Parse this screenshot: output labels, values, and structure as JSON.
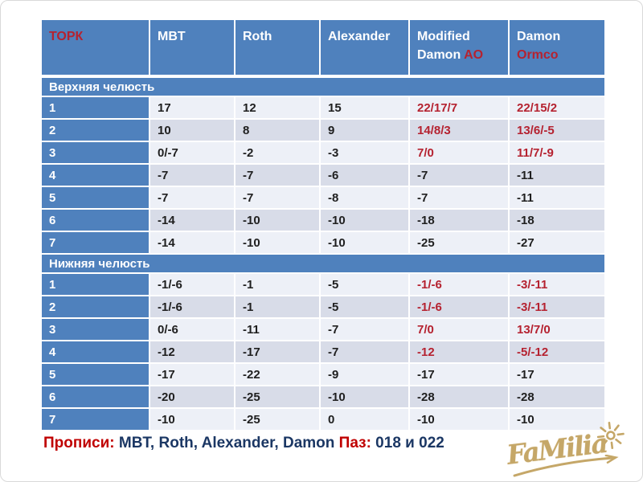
{
  "table": {
    "header": [
      {
        "lines": [
          [
            {
              "t": "ТОРК",
              "red": true
            }
          ]
        ]
      },
      {
        "lines": [
          [
            {
              "t": "MBT"
            }
          ]
        ]
      },
      {
        "lines": [
          [
            {
              "t": "Roth"
            }
          ]
        ]
      },
      {
        "lines": [
          [
            {
              "t": "Alexander"
            }
          ]
        ]
      },
      {
        "lines": [
          [
            {
              "t": "Modified"
            }
          ],
          [
            {
              "t": "Damon "
            },
            {
              "t": "AO",
              "red": true
            }
          ]
        ]
      },
      {
        "lines": [
          [
            {
              "t": "Damon"
            }
          ],
          [
            {
              "t": "Ormco",
              "red": true
            }
          ]
        ]
      }
    ],
    "sections": [
      {
        "title": "Верхняя челюсть",
        "rows": [
          {
            "label": "1",
            "values": [
              "17",
              "12",
              "15",
              "22/17/7",
              "22/15/2"
            ],
            "red": [
              3,
              4
            ]
          },
          {
            "label": "2",
            "values": [
              "10",
              "8",
              "9",
              "14/8/3",
              "13/6/-5"
            ],
            "red": [
              3,
              4
            ]
          },
          {
            "label": "3",
            "values": [
              "0/-7",
              "-2",
              "-3",
              "7/0",
              "11/7/-9"
            ],
            "red": [
              3,
              4
            ]
          },
          {
            "label": "4",
            "values": [
              "-7",
              "-7",
              "-6",
              "-7",
              "-11"
            ],
            "red": []
          },
          {
            "label": "5",
            "values": [
              "-7",
              "-7",
              "-8",
              "-7",
              "-11"
            ],
            "red": []
          },
          {
            "label": "6",
            "values": [
              "-14",
              "-10",
              "-10",
              "-18",
              "-18"
            ],
            "red": []
          },
          {
            "label": "7",
            "values": [
              "-14",
              "-10",
              "-10",
              "-25",
              "-27"
            ],
            "red": []
          }
        ]
      },
      {
        "title": "Нижняя челюсть",
        "rows": [
          {
            "label": "1",
            "values": [
              "-1/-6",
              "-1",
              "-5",
              "-1/-6",
              "-3/-11"
            ],
            "red": [
              3,
              4
            ]
          },
          {
            "label": "2",
            "values": [
              "-1/-6",
              "-1",
              "-5",
              "-1/-6",
              "-3/-11"
            ],
            "red": [
              3,
              4
            ]
          },
          {
            "label": "3",
            "values": [
              "0/-6",
              "-11",
              "-7",
              "7/0",
              "13/7/0"
            ],
            "red": [
              3,
              4
            ]
          },
          {
            "label": "4",
            "values": [
              "-12",
              "-17",
              "-7",
              "-12",
              "-5/-12"
            ],
            "red": [
              3,
              4
            ]
          },
          {
            "label": "5",
            "values": [
              "-17",
              "-22",
              "-9",
              "-17",
              "-17"
            ],
            "red": []
          },
          {
            "label": "6",
            "values": [
              "-20",
              "-25",
              "-10",
              "-28",
              "-28"
            ],
            "red": []
          },
          {
            "label": "7",
            "values": [
              "-10",
              "-25",
              "0",
              "-10",
              "-10"
            ],
            "red": []
          }
        ]
      }
    ]
  },
  "footer": {
    "label1": "Прописи:",
    "value1": " MBT, Roth, Alexander, Damon",
    "label2": "  Паз:",
    "value2": " 018 и 022"
  },
  "logo": {
    "text": "FaMilia"
  },
  "colors": {
    "header_blue": "#4f81bd",
    "row_light": "#edf0f7",
    "row_dark": "#d8dce8",
    "accent_red": "#b52230",
    "caption_red": "#c00000",
    "caption_navy": "#1b3764",
    "logo_gold": "#c5a768"
  }
}
